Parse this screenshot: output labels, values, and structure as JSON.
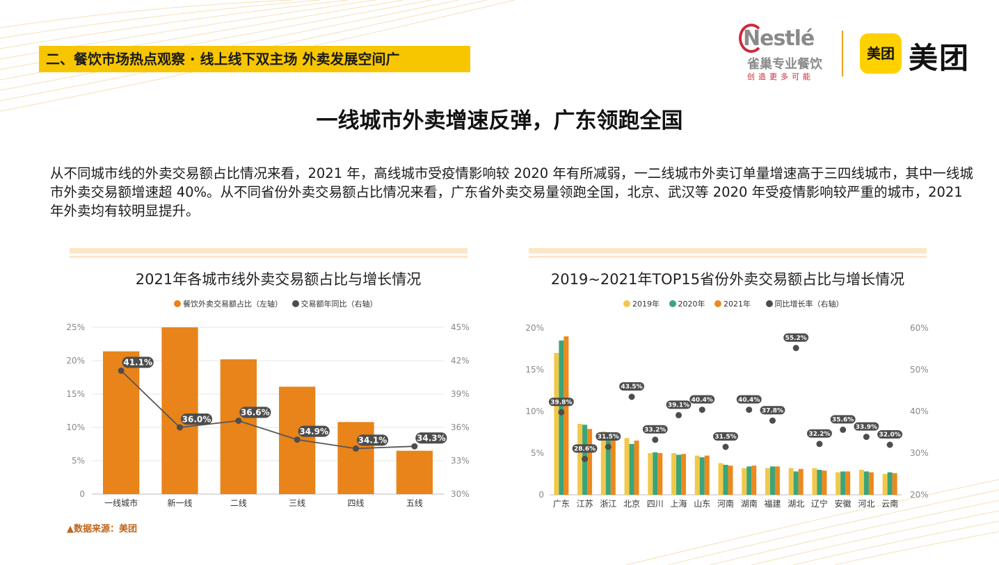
{
  "header": {
    "section_tag": "二、餐饮市场热点观察 · 线上线下双主场 外卖发展空间广",
    "nestle_word": "Nestlé",
    "nestle_cn": "雀巢专业餐饮",
    "nestle_slogan": "创造更多可能",
    "meituan_badge": "美团",
    "meituan_text": "美团"
  },
  "main_title": "一线城市外卖增速反弹，广东领跑全国",
  "paragraph": "从不同城市线的外卖交易额占比情况来看，2021 年，高线城市受疫情影响较 2020 年有所减弱，一二线城市外卖订单量增速高于三四线城市，其中一线城市外卖交易额增速超 40%。从不同省份外卖交易额占比情况来看，广东省外卖交易量领跑全国，北京、武汉等 2020 年受疫情影响较严重的城市，2021 年外卖均有较明显提升。",
  "source": "▲数据来源：美团",
  "colors": {
    "orange": "#e8841a",
    "yellow": "#f2c84b",
    "green": "#3aa57a",
    "orange2021": "#ec8a1e",
    "dark": "#4d4d4d"
  },
  "chart_data": [
    {
      "type": "bar",
      "title": "2021年各城市线外卖交易额占比与增长情况",
      "legend": [
        "餐饮外卖交易额占比（左轴）",
        "交易额年同比（右轴）"
      ],
      "categories": [
        "一线城市",
        "新一线",
        "二线",
        "三线",
        "四线",
        "五线"
      ],
      "series": [
        {
          "name": "餐饮外卖交易额占比（左轴）",
          "axis": "left",
          "kind": "bar",
          "values": [
            21.4,
            25.0,
            20.2,
            16.1,
            10.8,
            6.5
          ]
        },
        {
          "name": "交易额年同比（右轴）",
          "axis": "right",
          "kind": "line",
          "values": [
            41.1,
            36.0,
            36.6,
            34.9,
            34.1,
            34.3
          ],
          "labels": [
            "41.1%",
            "36.0%",
            "36.6%",
            "34.9%",
            "34.1%",
            "34.3%"
          ]
        }
      ],
      "ylim_left": [
        0,
        25
      ],
      "yticks_left": [
        "0",
        "5%",
        "10%",
        "15%",
        "20%",
        "25%"
      ],
      "ylim_right": [
        30,
        45
      ],
      "yticks_right": [
        "30%",
        "33%",
        "36%",
        "39%",
        "42%",
        "45%"
      ]
    },
    {
      "type": "bar",
      "title": "2019~2021年TOP15省份外卖交易额占比与增长情况",
      "legend": [
        "2019年",
        "2020年",
        "2021年",
        "同比增长率（右轴）"
      ],
      "categories": [
        "广东",
        "江苏",
        "浙江",
        "北京",
        "四川",
        "上海",
        "山东",
        "河南",
        "湖南",
        "福建",
        "湖北",
        "辽宁",
        "安徽",
        "河北",
        "云南"
      ],
      "series": [
        {
          "name": "2019年",
          "axis": "left",
          "kind": "bar",
          "values": [
            17.0,
            8.5,
            7.6,
            6.8,
            5.0,
            5.0,
            4.7,
            3.8,
            3.2,
            3.2,
            3.2,
            3.2,
            2.7,
            3.0,
            2.5
          ]
        },
        {
          "name": "2020年",
          "axis": "left",
          "kind": "bar",
          "values": [
            18.5,
            8.4,
            7.2,
            6.1,
            5.1,
            4.8,
            4.5,
            3.6,
            3.4,
            3.4,
            2.8,
            3.0,
            2.8,
            2.8,
            2.7
          ]
        },
        {
          "name": "2021年",
          "axis": "left",
          "kind": "bar",
          "values": [
            19.0,
            7.9,
            6.8,
            6.5,
            5.0,
            4.9,
            4.7,
            3.5,
            3.5,
            3.4,
            3.1,
            2.9,
            2.8,
            2.7,
            2.6
          ]
        },
        {
          "name": "同比增长率（右轴）",
          "axis": "right",
          "kind": "scatter",
          "values": [
            39.8,
            28.6,
            31.5,
            43.5,
            33.2,
            39.1,
            40.4,
            31.5,
            40.4,
            37.8,
            55.2,
            32.2,
            35.6,
            33.9,
            32.0
          ],
          "labels": [
            "39.8%",
            "28.6%",
            "31.5%",
            "43.5%",
            "33.2%",
            "39.1%",
            "40.4%",
            "31.5%",
            "40.4%",
            "37.8%",
            "55.2%",
            "32.2%",
            "35.6%",
            "33.9%",
            "32.0%"
          ]
        }
      ],
      "ylim_left": [
        0,
        20
      ],
      "yticks_left": [
        "0",
        "5%",
        "10%",
        "15%",
        "20%"
      ],
      "ylim_right": [
        20,
        60
      ],
      "yticks_right": [
        "20%",
        "30%",
        "40%",
        "50%",
        "60%"
      ]
    }
  ]
}
